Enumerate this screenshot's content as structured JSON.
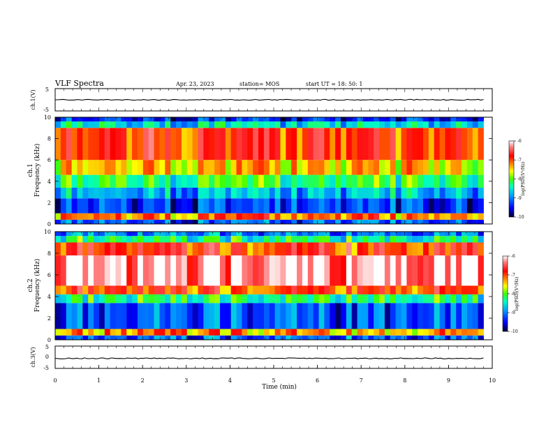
{
  "header": {
    "title": "VLF Spectra",
    "date": "Apr. 23, 2023",
    "station": "station= MOS",
    "start": "start  UT =   18: 50: 1"
  },
  "chart_data": [
    {
      "type": "line",
      "name": "ch1-waveform",
      "ylabel": "ch.1(V)",
      "ylim": [
        -5,
        5
      ],
      "yticks": [
        "5",
        "-5"
      ],
      "x": [
        0,
        9.8
      ],
      "values": [
        0,
        0
      ],
      "color": "#000000"
    },
    {
      "type": "heatmap",
      "name": "ch1-spectrogram",
      "ylabel_top": "ch.1",
      "ylabel": "Frequency (kHz)",
      "ylim": [
        0,
        10
      ],
      "yticks": [
        "0",
        "2",
        "4",
        "6",
        "8",
        "10"
      ],
      "xlim": [
        0,
        10
      ],
      "data_end_min": 9.8,
      "bands_khz": [
        {
          "from": 0,
          "to": 0.4,
          "level": -9.2
        },
        {
          "from": 0.4,
          "to": 1.0,
          "level": -7.2
        },
        {
          "from": 1.0,
          "to": 2.4,
          "level": -9.3
        },
        {
          "from": 2.4,
          "to": 3.4,
          "level": -8.8
        },
        {
          "from": 3.4,
          "to": 4.6,
          "level": -8.2
        },
        {
          "from": 4.6,
          "to": 6.0,
          "level": -7.5
        },
        {
          "from": 6.0,
          "to": 9.0,
          "level": -6.9
        },
        {
          "from": 9.0,
          "to": 9.6,
          "level": -8.6
        },
        {
          "from": 9.6,
          "to": 10.0,
          "level": -9.4
        }
      ],
      "colorbar": {
        "label": "log(PSD)(V²/Hz)",
        "ticks": [
          "-6",
          "-7",
          "-8",
          "-9",
          "-10"
        ],
        "range": [
          -10,
          -6
        ]
      }
    },
    {
      "type": "heatmap",
      "name": "ch2-spectrogram",
      "ylabel_top": "ch.2",
      "ylabel": "Frequency (kHz)",
      "ylim": [
        0,
        10
      ],
      "yticks": [
        "0",
        "2",
        "4",
        "6",
        "8",
        "10"
      ],
      "xlim": [
        0,
        10
      ],
      "data_end_min": 9.8,
      "bands_khz": [
        {
          "from": 0,
          "to": 0.4,
          "level": -9.2
        },
        {
          "from": 0.4,
          "to": 1.0,
          "level": -7.3
        },
        {
          "from": 1.0,
          "to": 3.4,
          "level": -9.2
        },
        {
          "from": 3.4,
          "to": 4.2,
          "level": -8.3
        },
        {
          "from": 4.2,
          "to": 5.0,
          "level": -7.0
        },
        {
          "from": 5.0,
          "to": 7.8,
          "level": -6.2
        },
        {
          "from": 7.8,
          "to": 9.0,
          "level": -6.9
        },
        {
          "from": 9.0,
          "to": 9.6,
          "level": -8.3
        },
        {
          "from": 9.6,
          "to": 10.0,
          "level": -9.0
        }
      ],
      "colorbar": {
        "label": "log(PSD)(V²/Hz)",
        "ticks": [
          "-6",
          "-7",
          "-8",
          "-9",
          "-10"
        ],
        "range": [
          -10,
          -6
        ]
      }
    },
    {
      "type": "line",
      "name": "ch3-waveform",
      "ylabel": "ch.3(V)",
      "ylim": [
        -5,
        5
      ],
      "yticks": [
        "5",
        "0",
        "-5"
      ],
      "x": [
        0,
        9.8
      ],
      "values": [
        -0.5,
        -0.5
      ],
      "color": "#000000",
      "xlabel": "Time  (min)",
      "xticks": [
        "0",
        "1",
        "2",
        "3",
        "4",
        "5",
        "6",
        "7",
        "8",
        "9",
        "10"
      ],
      "xlim": [
        0,
        10
      ]
    }
  ],
  "colors": {
    "scale": [
      "#00004a",
      "#0000ff",
      "#00a0ff",
      "#00ffc0",
      "#40ff00",
      "#ffff00",
      "#ff8000",
      "#ff0000",
      "#ff8080",
      "#ffffff"
    ]
  }
}
